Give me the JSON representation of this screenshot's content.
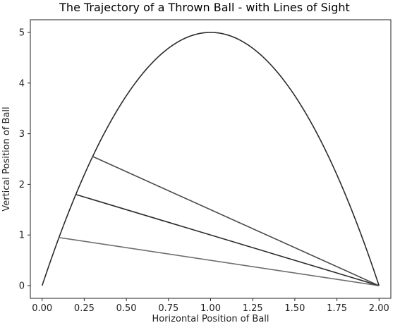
{
  "chart_data": {
    "type": "line",
    "title": "The Trajectory of a Thrown Ball - with Lines of Sight",
    "xlabel": "Horizontal Position of Ball",
    "ylabel": "Vertical Position of Ball",
    "xlim": [
      -0.07,
      2.07
    ],
    "ylim": [
      -0.25,
      5.25
    ],
    "xticks": [
      0.0,
      0.25,
      0.5,
      0.75,
      1.0,
      1.25,
      1.5,
      1.75,
      2.0
    ],
    "xtick_labels": [
      "0.00",
      "0.25",
      "0.50",
      "0.75",
      "1.00",
      "1.25",
      "1.50",
      "1.75",
      "2.00"
    ],
    "yticks": [
      0,
      1,
      2,
      3,
      4,
      5
    ],
    "ytick_labels": [
      "0",
      "1",
      "2",
      "3",
      "4",
      "5"
    ],
    "grid": false,
    "series": [
      {
        "kind": "trajectory",
        "equation": "y = 5 * x * (2 - x)",
        "x_range": [
          0,
          2
        ],
        "color": "#2b2b2b"
      },
      {
        "kind": "line-of-sight",
        "x": [
          0.1,
          2.0
        ],
        "y": [
          0.95,
          0.0
        ],
        "color": "#6e6e6e"
      },
      {
        "kind": "line-of-sight",
        "x": [
          0.2,
          2.0
        ],
        "y": [
          1.8,
          0.0
        ],
        "color": "#2b2b2b"
      },
      {
        "kind": "line-of-sight",
        "x": [
          0.3,
          2.0
        ],
        "y": [
          2.55,
          0.0
        ],
        "color": "#4a4a4a"
      }
    ]
  }
}
